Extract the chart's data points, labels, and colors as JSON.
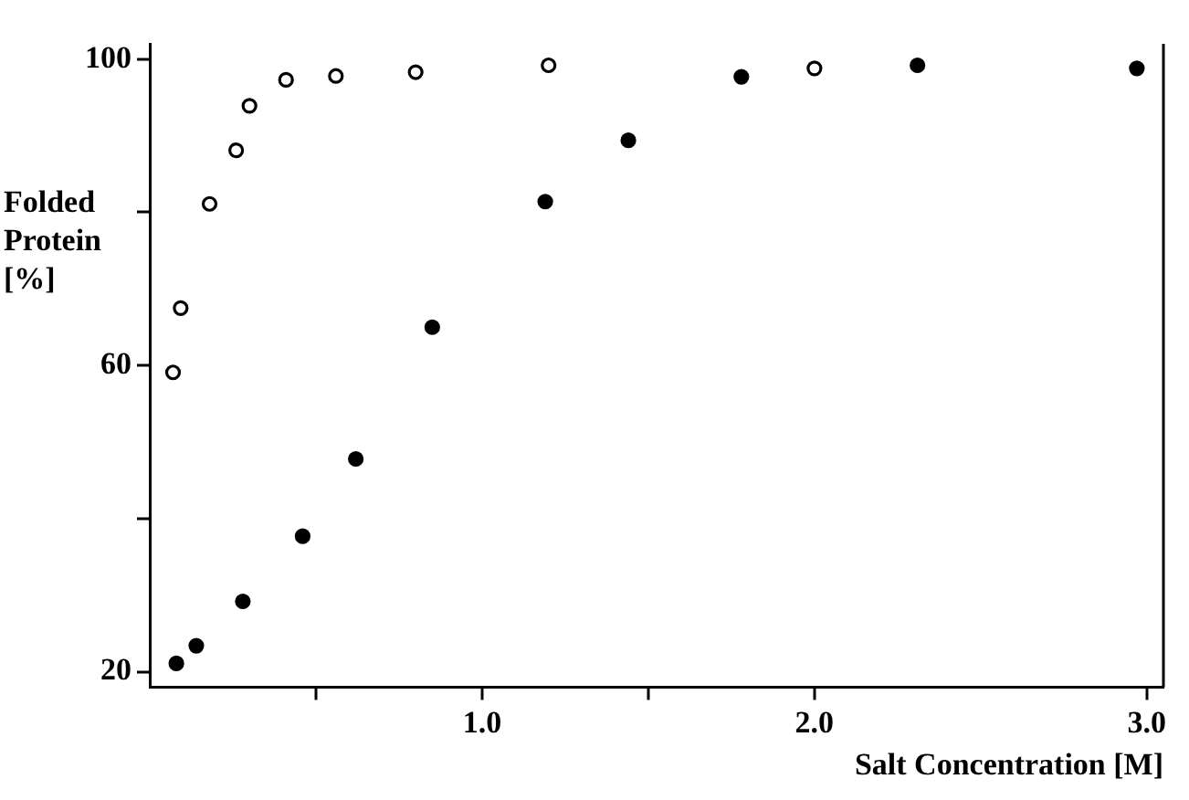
{
  "chart_data": {
    "type": "scatter",
    "xlabel": "Salt Concentration [M]",
    "ylabel": "Folded Protein [%]",
    "xlim": [
      0,
      3.05
    ],
    "ylim": [
      18,
      102
    ],
    "xticks": [
      {
        "value": 0.5,
        "label": null
      },
      {
        "value": 1,
        "label": "1.0"
      },
      {
        "value": 1.5,
        "label": null
      },
      {
        "value": 2,
        "label": "2.0"
      },
      {
        "value": 3,
        "label": "3.0"
      }
    ],
    "yticks": [
      20,
      {
        "value": 40,
        "label": null
      },
      60,
      {
        "value": 80,
        "label": null
      },
      100
    ],
    "grid": false,
    "legend": false,
    "marker": "circle",
    "series": [
      {
        "color": "#ffffff",
        "x": [
          0.07,
          0.093,
          0.18,
          0.26,
          0.3,
          0.41,
          0.56,
          0.8,
          1.2,
          2.0
        ],
        "values": [
          59.1,
          67.5,
          81.1,
          88.1,
          93.9,
          97.3,
          97.8,
          98.3,
          99.2,
          98.8
        ]
      },
      {
        "color": "#000000",
        "x": [
          0.08,
          0.14,
          0.28,
          0.46,
          0.62,
          0.85,
          1.19,
          1.44,
          1.78,
          2.31,
          2.97
        ],
        "values": [
          21.1,
          23.4,
          29.2,
          37.7,
          47.8,
          65.0,
          81.4,
          89.4,
          97.7,
          99.2,
          98.8
        ]
      }
    ]
  }
}
